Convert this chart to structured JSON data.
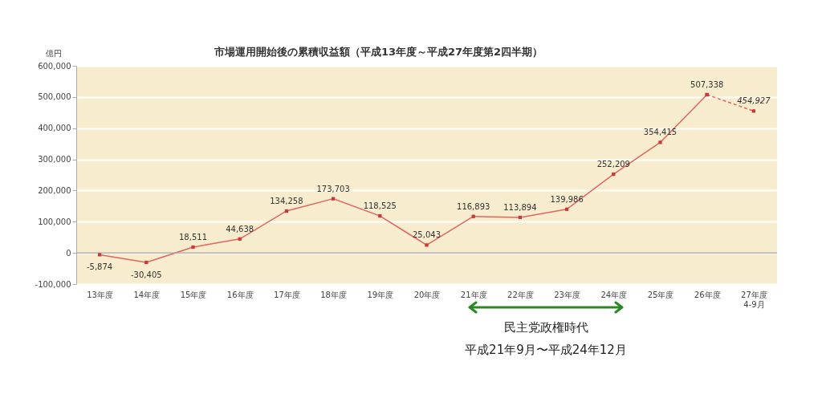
{
  "chart_data": {
    "type": "line",
    "title": "市場運用開始後の累積収益額（平成13年度～平成27年度第2四半期）",
    "ylabel": "億円",
    "categories": [
      "13年度",
      "14年度",
      "15年度",
      "16年度",
      "17年度",
      "18年度",
      "19年度",
      "20年度",
      "21年度",
      "22年度",
      "23年度",
      "24年度",
      "25年度",
      "26年度",
      "27年度\n4-9月"
    ],
    "series": [
      {
        "color": "#e06660",
        "line_style": "solid",
        "values": [
          -5874,
          -30405,
          18511,
          44638,
          134258,
          173703,
          118525,
          25043,
          116893,
          113894,
          139986,
          252209,
          354415,
          507338,
          null
        ],
        "value_labels": [
          "-5,874",
          "-30,405",
          "18,511",
          "44,638",
          "134,258",
          "173,703",
          "118,525",
          "25,043",
          "116,893",
          "113,894",
          "139,986",
          "252,209",
          "354,415",
          "507,338",
          null
        ]
      },
      {
        "color": "#e06660",
        "line_style": "dashed",
        "values": [
          null,
          null,
          null,
          null,
          null,
          null,
          null,
          null,
          null,
          null,
          null,
          null,
          null,
          507338,
          454927
        ],
        "value_labels": [
          null,
          null,
          null,
          null,
          null,
          null,
          null,
          null,
          null,
          null,
          null,
          null,
          null,
          null,
          "454,927"
        ]
      }
    ],
    "ylim": [
      -100000,
      600000
    ],
    "yticks": [
      {
        "value": -100000,
        "label": "-100,000"
      },
      0,
      {
        "value": 100000,
        "label": "100,000"
      },
      {
        "value": 200000,
        "label": "200,000"
      },
      {
        "value": 300000,
        "label": "300,000"
      },
      {
        "value": 400000,
        "label": "400,000"
      },
      {
        "value": 500000,
        "label": "500,000"
      },
      {
        "value": 600000,
        "label": "600,000"
      }
    ],
    "grid": "y",
    "marker": "square",
    "ref_lines": [
      {
        "axis": "y",
        "value": 0,
        "color": "#a0a0a0"
      }
    ],
    "annotations": [
      "民主党政権時代",
      "平成21年9月〜平成24年12月"
    ]
  }
}
